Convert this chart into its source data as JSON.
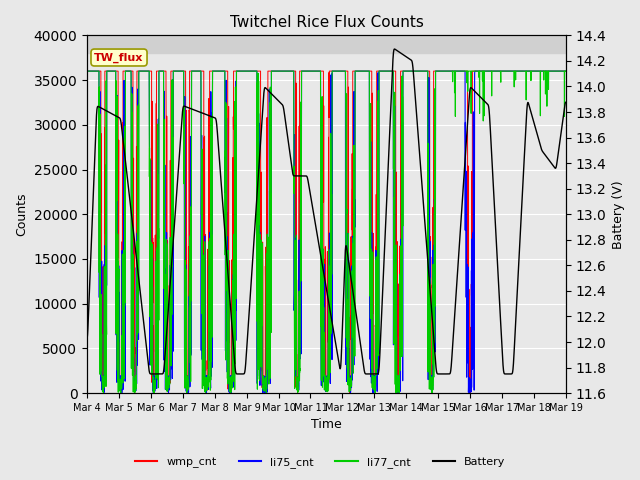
{
  "title": "Twitchel Rice Flux Counts",
  "xlabel": "Time",
  "ylabel_left": "Counts",
  "ylabel_right": "Battery (V)",
  "ylim_left": [
    0,
    40000
  ],
  "ylim_right": [
    11.6,
    14.4
  ],
  "yticks_left": [
    0,
    5000,
    10000,
    15000,
    20000,
    25000,
    30000,
    35000,
    40000
  ],
  "yticks_right": [
    11.6,
    11.8,
    12.0,
    12.2,
    12.4,
    12.6,
    12.8,
    13.0,
    13.2,
    13.4,
    13.6,
    13.8,
    14.0,
    14.2,
    14.4
  ],
  "colors": {
    "wmp_cnt": "#ff0000",
    "li75_cnt": "#0000ff",
    "li77_cnt": "#00cc00",
    "Battery": "#000000"
  },
  "annotation_text": "TW_flux",
  "annotation_color": "#cc0000",
  "annotation_bg": "#ffffcc",
  "annotation_border": "#999900",
  "plot_bg": "#e8e8e8",
  "span_bg": "#d0d0d0"
}
